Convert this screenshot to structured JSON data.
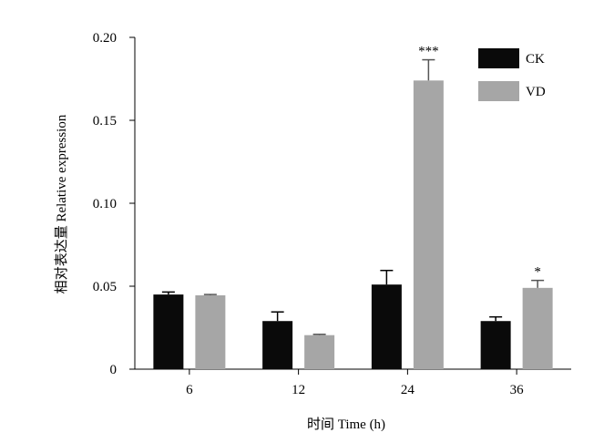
{
  "chart_data": {
    "type": "bar",
    "categories": [
      "6",
      "12",
      "24",
      "36"
    ],
    "series": [
      {
        "name": "CK",
        "color": "#0a0a0a",
        "values": [
          0.045,
          0.029,
          0.051,
          0.029
        ],
        "errors": [
          0.0015,
          0.0055,
          0.0085,
          0.0025
        ]
      },
      {
        "name": "VD",
        "color": "#a6a6a6",
        "values": [
          0.0445,
          0.0205,
          0.174,
          0.049
        ],
        "errors": [
          0.0005,
          0.0005,
          0.0125,
          0.0045
        ]
      }
    ],
    "significance": [
      {
        "category": "24",
        "series": "VD",
        "label": "***"
      },
      {
        "category": "36",
        "series": "VD",
        "label": "*"
      }
    ],
    "xlabel": "时间 Time (h)",
    "ylabel": "相对表达量 Relative expression",
    "ylim": [
      0,
      0.2
    ],
    "yticks": [
      "0",
      "0.05",
      "0.10",
      "0.15",
      "0.20"
    ],
    "ytick_values": [
      0,
      0.05,
      0.1,
      0.15,
      0.2
    ],
    "legend_position": "top-right",
    "grid": false
  }
}
